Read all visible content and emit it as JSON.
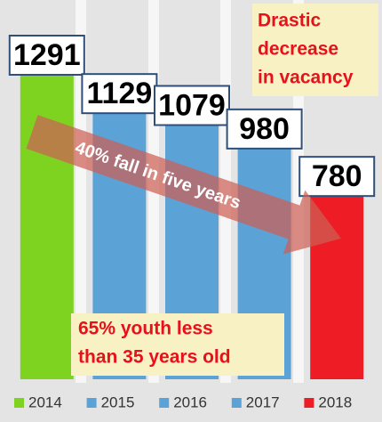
{
  "chart_data": {
    "type": "bar",
    "categories": [
      "2014",
      "2015",
      "2016",
      "2017",
      "2018"
    ],
    "values": [
      1291,
      1129,
      1079,
      980,
      780
    ],
    "colors": [
      "#7ed321",
      "#5ba3d6",
      "#5ba3d6",
      "#5ba3d6",
      "#ee1c25"
    ],
    "legend": "bottom",
    "annotations": [
      [
        "Drastic",
        "decrease",
        "in vacancy"
      ],
      [
        "40% fall in five years"
      ],
      [
        "65% youth less",
        "than 35 years old"
      ]
    ]
  }
}
